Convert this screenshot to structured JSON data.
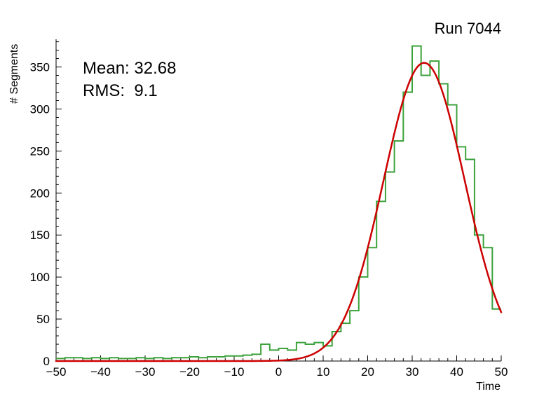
{
  "header": {
    "title": "Run 7044"
  },
  "annotations": {
    "mean_text": "Mean: 32.68",
    "rms_text": "RMS:  9.1"
  },
  "colors": {
    "histogram": "#3ca23c",
    "fit": "#cc0000",
    "axis": "#000000",
    "background": "#ffffff"
  },
  "chart_data": {
    "type": "bar",
    "subtype": "step-histogram-with-gaussian-fit",
    "title": "Run 7044",
    "xlabel": "Time",
    "ylabel": "# Segments",
    "xlim": [
      -50,
      50
    ],
    "ylim": [
      0,
      383
    ],
    "grid": false,
    "legend": "none",
    "x_major_ticks": [
      -50,
      -40,
      -30,
      -20,
      -10,
      0,
      10,
      20,
      30,
      40,
      50
    ],
    "x_minor_tick_step": 2,
    "y_major_ticks": [
      0,
      50,
      100,
      150,
      200,
      250,
      300,
      350
    ],
    "y_minor_tick_step": 10,
    "series": [
      {
        "name": "time-histogram",
        "type": "step-histogram",
        "color": "#3ca23c",
        "bin_start": -50,
        "bin_width": 2,
        "counts": [
          3,
          4,
          4,
          3,
          4,
          3,
          4,
          3,
          3,
          4,
          3,
          4,
          3,
          4,
          4,
          5,
          4,
          5,
          5,
          6,
          6,
          7,
          8,
          20,
          13,
          15,
          13,
          22,
          20,
          22,
          18,
          35,
          45,
          60,
          100,
          135,
          190,
          225,
          262,
          320,
          375,
          340,
          357,
          330,
          305,
          255,
          240,
          150,
          135,
          62
        ]
      },
      {
        "name": "gaussian-fit",
        "type": "gaussian-curve",
        "color": "#cc0000",
        "amplitude": 355,
        "mean": 32.68,
        "sigma": 9.1
      }
    ],
    "stats": {
      "mean": 32.68,
      "rms": 9.1
    }
  }
}
